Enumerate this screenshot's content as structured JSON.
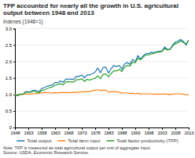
{
  "chart_data": {
    "type": "line",
    "title": "TFP accounted for nearly all the growth in U.S. agricultural output between 1948 and 2013",
    "y_label": "Indexes (1948=1)",
    "annotations": [
      "Note: TFP is measured as total agricultural output per unit of aggregate input.",
      "Source: USDA, Economic Research Service."
    ],
    "x": [
      1948,
      1949,
      1950,
      1951,
      1952,
      1953,
      1954,
      1955,
      1956,
      1957,
      1958,
      1959,
      1960,
      1961,
      1962,
      1963,
      1964,
      1965,
      1966,
      1967,
      1968,
      1969,
      1970,
      1971,
      1972,
      1973,
      1974,
      1975,
      1976,
      1977,
      1978,
      1979,
      1980,
      1981,
      1982,
      1983,
      1984,
      1985,
      1986,
      1987,
      1988,
      1989,
      1990,
      1991,
      1992,
      1993,
      1994,
      1995,
      1996,
      1997,
      1998,
      1999,
      2000,
      2001,
      2002,
      2003,
      2004,
      2005,
      2006,
      2007,
      2008,
      2009,
      2010,
      2011,
      2012,
      2013
    ],
    "series": [
      {
        "name": "Total output",
        "values": [
          1.0,
          0.96,
          1.01,
          1.01,
          1.09,
          1.08,
          1.09,
          1.13,
          1.12,
          1.09,
          1.18,
          1.21,
          1.25,
          1.27,
          1.29,
          1.36,
          1.36,
          1.41,
          1.37,
          1.46,
          1.47,
          1.46,
          1.46,
          1.55,
          1.55,
          1.59,
          1.51,
          1.59,
          1.59,
          1.63,
          1.68,
          1.8,
          1.66,
          1.82,
          1.83,
          1.65,
          1.79,
          1.88,
          1.85,
          1.88,
          1.77,
          1.92,
          1.97,
          1.92,
          2.06,
          2.0,
          2.18,
          2.07,
          2.18,
          2.24,
          2.24,
          2.28,
          2.27,
          2.3,
          2.31,
          2.32,
          2.44,
          2.37,
          2.37,
          2.5,
          2.59,
          2.62,
          2.67,
          2.61,
          2.5,
          2.65
        ]
      },
      {
        "name": "Total farm input",
        "values": [
          1.0,
          0.98,
          1.0,
          1.01,
          1.02,
          1.01,
          1.02,
          1.02,
          1.04,
          1.04,
          1.05,
          1.06,
          1.06,
          1.05,
          1.05,
          1.06,
          1.05,
          1.06,
          1.06,
          1.06,
          1.06,
          1.06,
          1.06,
          1.07,
          1.07,
          1.08,
          1.08,
          1.09,
          1.1,
          1.11,
          1.13,
          1.15,
          1.12,
          1.13,
          1.13,
          1.07,
          1.09,
          1.09,
          1.08,
          1.07,
          1.04,
          1.05,
          1.05,
          1.03,
          1.04,
          1.02,
          1.04,
          1.01,
          1.02,
          1.02,
          1.02,
          1.02,
          1.01,
          1.01,
          1.01,
          1.01,
          1.02,
          1.01,
          1.0,
          1.01,
          1.02,
          1.02,
          1.02,
          1.01,
          0.99,
          1.0
        ]
      },
      {
        "name": "Total factor productivity (TFP)",
        "values": [
          1.0,
          0.98,
          1.01,
          1.0,
          1.07,
          1.07,
          1.07,
          1.11,
          1.08,
          1.05,
          1.12,
          1.14,
          1.18,
          1.21,
          1.23,
          1.28,
          1.3,
          1.33,
          1.29,
          1.38,
          1.39,
          1.38,
          1.38,
          1.45,
          1.45,
          1.47,
          1.4,
          1.46,
          1.44,
          1.47,
          1.49,
          1.57,
          1.48,
          1.61,
          1.62,
          1.54,
          1.64,
          1.72,
          1.71,
          1.76,
          1.7,
          1.83,
          1.88,
          1.86,
          1.98,
          1.96,
          2.1,
          2.05,
          2.14,
          2.2,
          2.2,
          2.23,
          2.25,
          2.28,
          2.29,
          2.3,
          2.39,
          2.35,
          2.37,
          2.47,
          2.54,
          2.57,
          2.62,
          2.58,
          2.53,
          2.65
        ]
      }
    ],
    "xlim": [
      1948,
      2013
    ],
    "xticks": [
      1948,
      1953,
      1958,
      1963,
      1968,
      1973,
      1978,
      1983,
      1988,
      1993,
      1998,
      2003,
      2008,
      2013
    ],
    "ylim": [
      0,
      3.0
    ],
    "yticks": [
      0,
      0.5,
      {
        "value": 1.0,
        "label": "1.0"
      },
      1.5,
      {
        "value": 2.0,
        "label": "2.0"
      },
      2.5,
      {
        "value": 3.0,
        "label": "3.0"
      }
    ],
    "grid": true,
    "legend": "bottom"
  }
}
